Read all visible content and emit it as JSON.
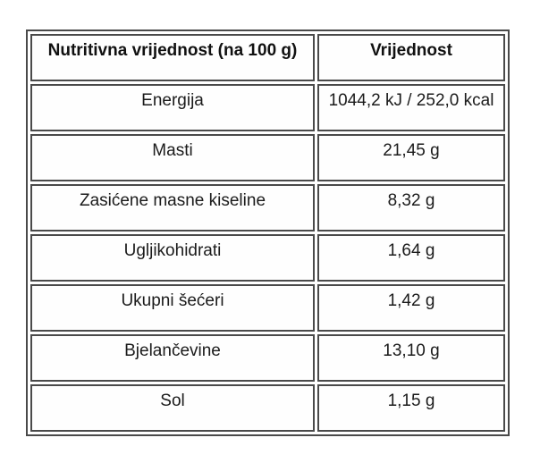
{
  "page": {
    "background": "#ffffff"
  },
  "table": {
    "border_color": "#4a4a4a",
    "text_color": "#1b1b1b",
    "header": {
      "name_label": "Nutritivna vrijednost (na 100 g)",
      "value_label": "Vrijednost"
    },
    "rows": [
      {
        "label": "Energija",
        "value": "1044,2 kJ / 252,0 kcal"
      },
      {
        "label": "Masti",
        "value": "21,45 g"
      },
      {
        "label": "Zasićene masne kiseline",
        "value": "8,32 g"
      },
      {
        "label": "Ugljikohidrati",
        "value": "1,64 g"
      },
      {
        "label": "Ukupni šećeri",
        "value": "1,42 g"
      },
      {
        "label": "Bjelančevine",
        "value": "13,10 g"
      },
      {
        "label": "Sol",
        "value": "1,15 g"
      }
    ]
  }
}
